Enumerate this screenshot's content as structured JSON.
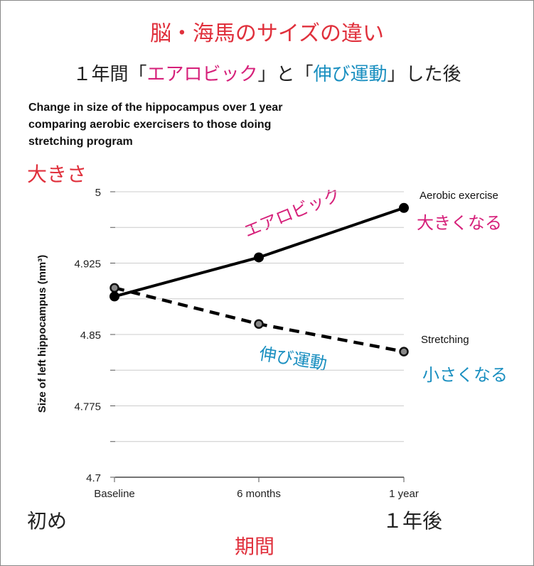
{
  "header": {
    "title": "脳・海馬のサイズの違い",
    "subtitle_parts": [
      "１年間「",
      "エアロビック",
      "」と「",
      "伸び運動",
      "」した後"
    ]
  },
  "annotations": {
    "y_jp": "大きさ",
    "x_jp": "期間",
    "start_jp": "初め",
    "end_jp": "１年後",
    "aerobic_jp": "エアロビック",
    "stretch_jp": "伸び運動",
    "aerobic_result": "大きくなる",
    "stretch_result": "小さくなる"
  },
  "colors": {
    "red": "#e0303c",
    "pink": "#d6207a",
    "blue": "#1a8fc0"
  },
  "chart_data": {
    "type": "line",
    "title_lines": [
      "Change in size of the hippocampus over 1 year",
      "comparing aerobic exercisers to those doing",
      "stretching program"
    ],
    "ylabel": "Size of left hippocampus (mm³)",
    "xlabel": "",
    "categories": [
      "Baseline",
      "6 months",
      "1 year"
    ],
    "ylim": [
      4.7,
      5.0
    ],
    "yticks": [
      "4.7",
      "4.775",
      "4.85",
      "4.925",
      "5"
    ],
    "grid": true,
    "series": [
      {
        "name": "Aerobic exercise",
        "style": "solid",
        "values": [
          4.89,
          4.931,
          4.983
        ]
      },
      {
        "name": "Stretching",
        "style": "dashed",
        "values": [
          4.899,
          4.861,
          4.832
        ]
      }
    ]
  }
}
